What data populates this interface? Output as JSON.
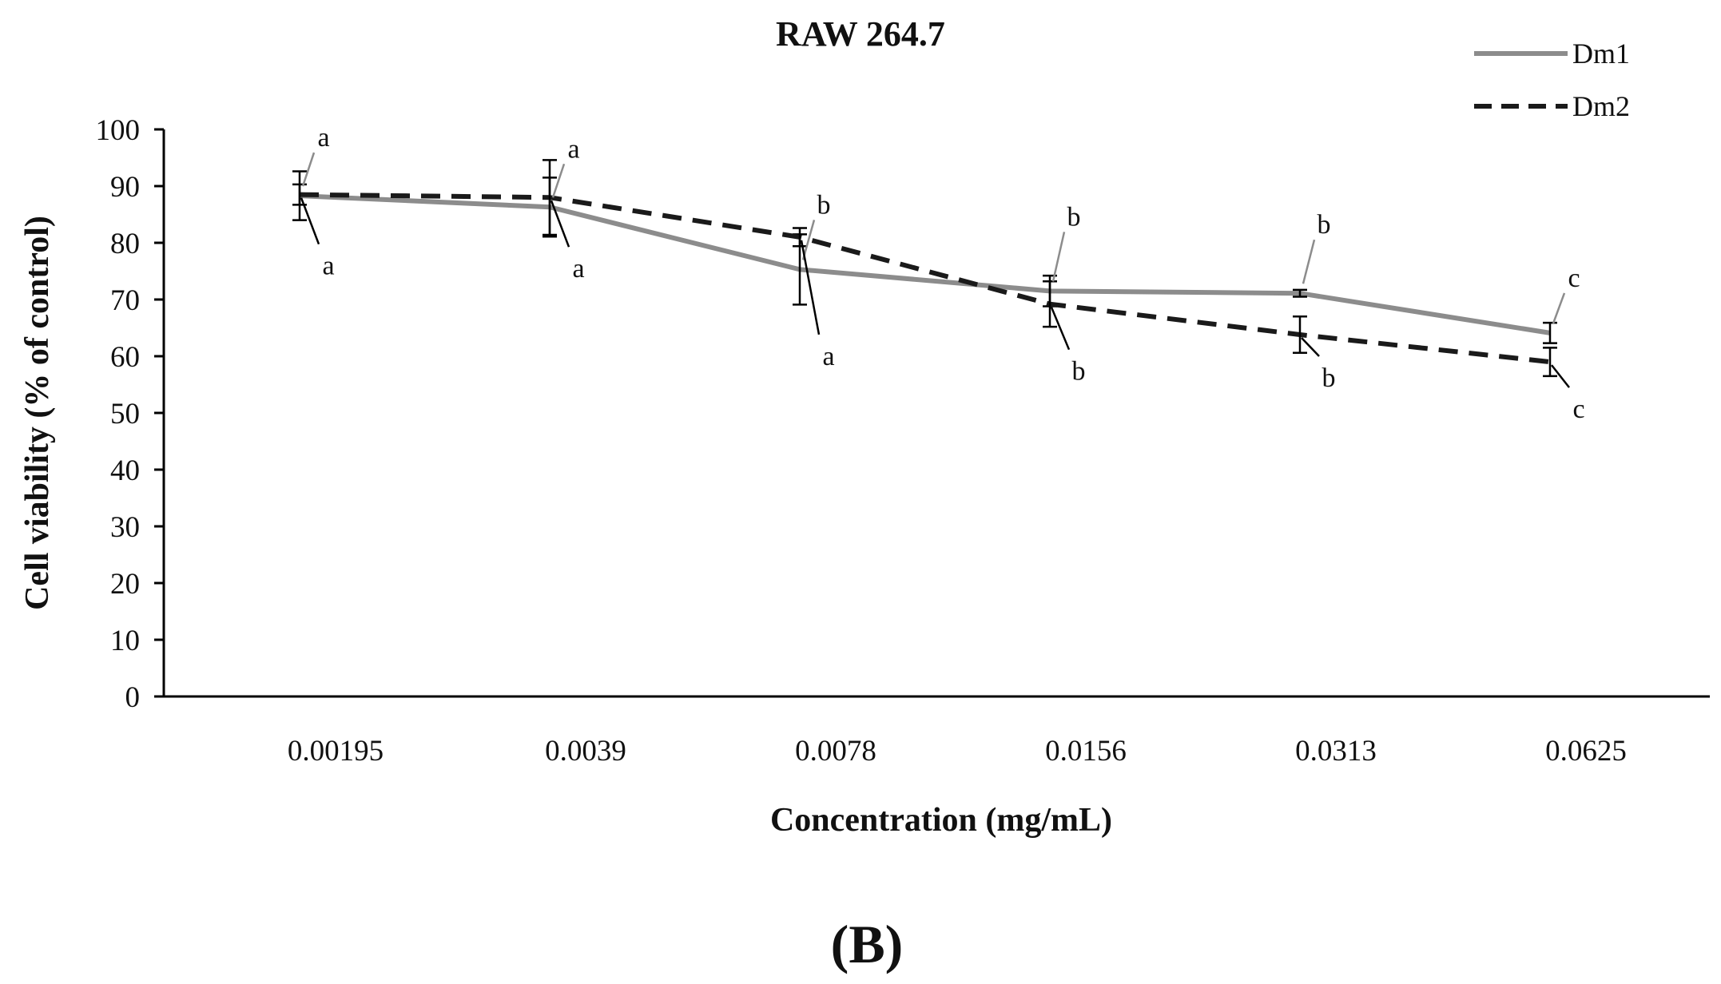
{
  "chart_data": {
    "type": "line",
    "title": "RAW 264.7",
    "panel_label": "(B)",
    "xlabel": "Concentration (mg/mL)",
    "ylabel": "Cell viability (% of control)",
    "categories": [
      "0.00195",
      "0.0039",
      "0.0078",
      "0.0156",
      "0.0313",
      "0.0625"
    ],
    "ylim": [
      0,
      100
    ],
    "yticks": [
      "0",
      "10",
      "20",
      "30",
      "40",
      "50",
      "60",
      "70",
      "80",
      "90",
      "100"
    ],
    "grid": false,
    "legend_position": "top-right",
    "series": [
      {
        "name": "Dm1",
        "style": "solid",
        "color": "#8c8c8c",
        "values": [
          88.3,
          86.3,
          75.3,
          71.5,
          71.1,
          64.1
        ],
        "errors": [
          4.3,
          5.2,
          6.2,
          2.7,
          0.6,
          1.8
        ],
        "letters": [
          "a",
          "a",
          "b",
          "b",
          "b",
          "c"
        ]
      },
      {
        "name": "Dm2",
        "style": "dashed",
        "color": "#1a1a1a",
        "values": [
          88.5,
          88.0,
          81.0,
          69.2,
          63.8,
          59.0
        ],
        "errors": [
          1.8,
          6.6,
          1.6,
          4.0,
          3.2,
          2.5
        ],
        "letters": [
          "a",
          "a",
          "a",
          "b",
          "b",
          "c"
        ]
      }
    ]
  }
}
